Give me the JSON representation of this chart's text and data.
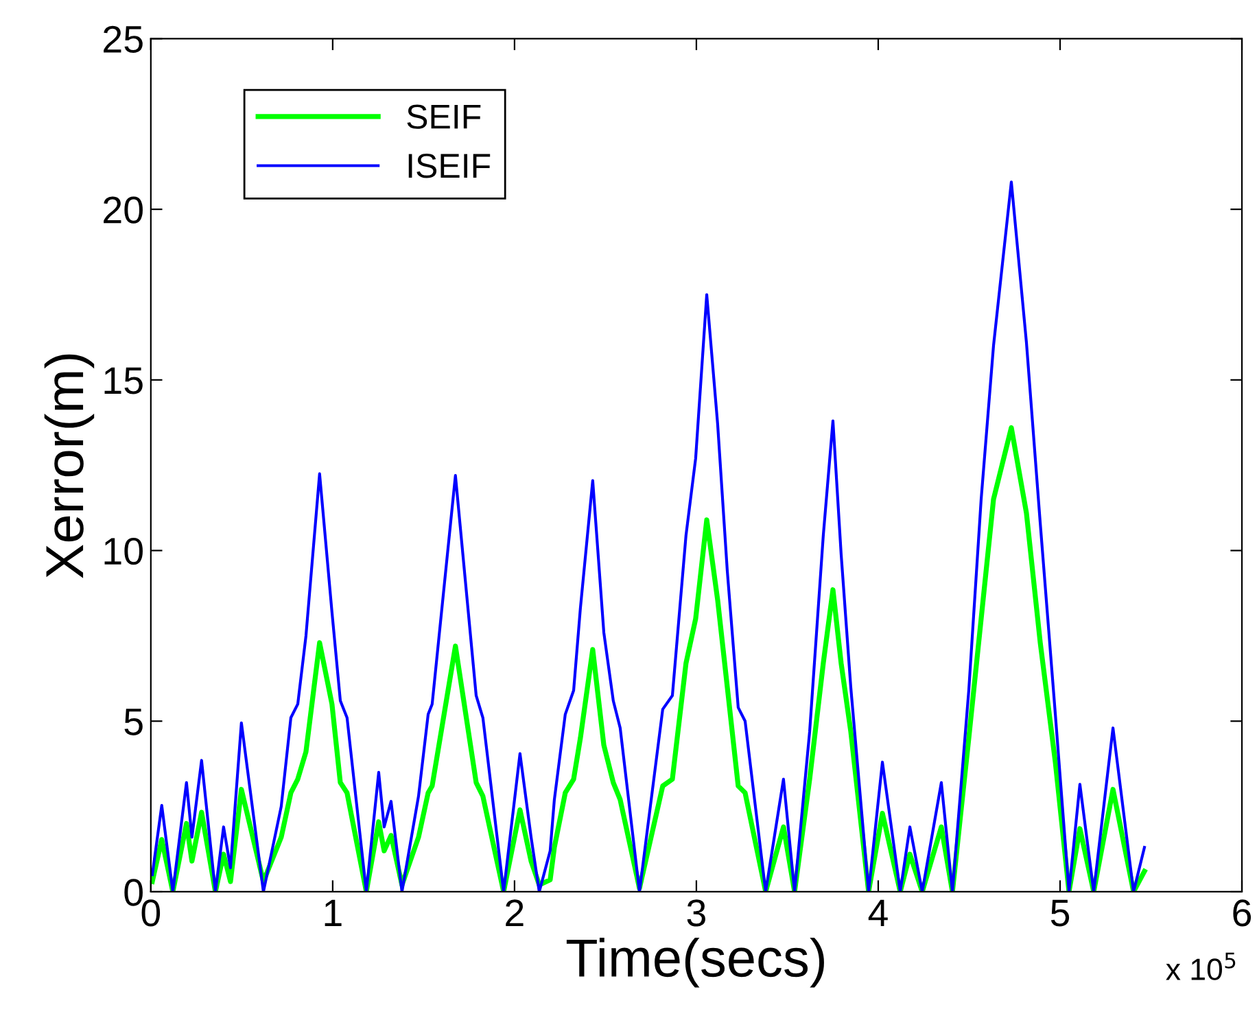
{
  "chart_data": {
    "type": "line",
    "xlabel": "Time(secs)",
    "ylabel": "Xerror(m)",
    "x": [
      0.008,
      0.06,
      0.121,
      0.196,
      0.226,
      0.279,
      0.355,
      0.4,
      0.438,
      0.498,
      0.619,
      0.717,
      0.77,
      0.808,
      0.853,
      0.928,
      0.996,
      1.042,
      1.079,
      1.185,
      1.253,
      1.283,
      1.321,
      1.381,
      1.472,
      1.525,
      1.547,
      1.675,
      1.789,
      1.826,
      1.94,
      2.03,
      2.091,
      2.136,
      2.196,
      2.219,
      2.279,
      2.325,
      2.362,
      2.43,
      2.491,
      2.543,
      2.581,
      2.687,
      2.815,
      2.868,
      2.943,
      2.996,
      3.057,
      3.117,
      3.17,
      3.23,
      3.268,
      3.381,
      3.479,
      3.54,
      3.623,
      3.698,
      3.751,
      3.796,
      3.849,
      3.947,
      4.023,
      4.121,
      4.174,
      4.242,
      4.347,
      4.408,
      4.498,
      4.566,
      4.634,
      4.732,
      4.815,
      4.891,
      4.974,
      5.049,
      5.109,
      5.185,
      5.291,
      5.404,
      5.464
    ],
    "series": [
      {
        "name": "SEIF",
        "color": "#00ff00",
        "values": [
          0.3,
          1.53,
          0,
          2.0,
          0.9,
          2.33,
          0,
          1.1,
          0.3,
          3.0,
          0.3,
          1.6,
          2.9,
          3.3,
          4.1,
          7.3,
          5.5,
          3.2,
          2.9,
          0,
          2.05,
          1.2,
          1.65,
          0.2,
          1.6,
          2.9,
          3.1,
          7.2,
          3.2,
          2.8,
          0,
          2.4,
          0.9,
          0.2,
          0.35,
          1.3,
          2.9,
          3.3,
          4.5,
          7.1,
          4.3,
          3.2,
          2.7,
          0.1,
          3.1,
          3.3,
          6.7,
          8.0,
          10.9,
          8.55,
          6.0,
          3.1,
          2.9,
          0,
          1.9,
          0,
          3.3,
          6.7,
          8.85,
          6.7,
          4.7,
          0,
          2.3,
          0,
          1.1,
          0,
          1.9,
          0,
          4.5,
          8.0,
          11.5,
          13.6,
          11.1,
          7.3,
          3.8,
          0,
          1.85,
          0,
          3.0,
          0,
          0.6
        ]
      },
      {
        "name": "ISEIF",
        "color": "#0000ff",
        "values": [
          0.5,
          2.53,
          0,
          3.2,
          1.6,
          3.85,
          0,
          1.9,
          0.7,
          4.95,
          0,
          2.5,
          5.1,
          5.5,
          7.5,
          12.25,
          8.2,
          5.6,
          5.1,
          0,
          3.5,
          1.9,
          2.65,
          0,
          2.8,
          5.2,
          5.5,
          12.2,
          5.75,
          5.1,
          0,
          4.05,
          1.6,
          0,
          1.2,
          2.7,
          5.2,
          5.9,
          8.3,
          12.05,
          7.6,
          5.6,
          4.8,
          0,
          5.35,
          5.75,
          10.45,
          12.7,
          17.5,
          13.7,
          9.4,
          5.4,
          5.0,
          0,
          3.3,
          0,
          4.7,
          10.45,
          13.8,
          9.9,
          6.0,
          0,
          3.8,
          0,
          1.9,
          0,
          3.2,
          0,
          5.9,
          11.5,
          16.0,
          20.8,
          16.1,
          10.8,
          5.2,
          0,
          3.15,
          0,
          4.8,
          0,
          1.3
        ]
      }
    ],
    "xlim": [
      0,
      6
    ],
    "xticks": [
      0,
      1,
      2,
      3,
      4,
      5,
      6
    ],
    "ylim": [
      0,
      25
    ],
    "yticks": [
      0,
      5,
      10,
      15,
      20,
      25
    ],
    "annotations": [
      "x 10$^{5}$"
    ],
    "legend": "top left",
    "grid": false,
    "marker": "none",
    "line_style": "solid"
  }
}
